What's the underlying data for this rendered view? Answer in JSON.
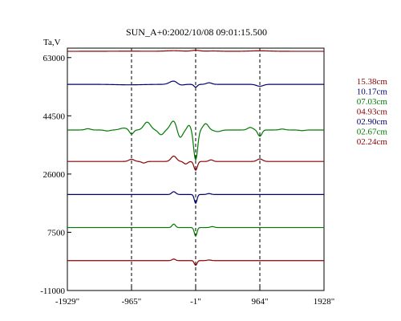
{
  "chart_data": {
    "type": "line",
    "title": "SUN_A+0:2002/10/08 09:01:15.500",
    "ylabel": "Ta,V",
    "xlim": [
      -1929,
      1928
    ],
    "ylim": [
      -11000,
      66000
    ],
    "x_ticks": [
      -1929,
      -965,
      -1,
      964,
      1928
    ],
    "x_tick_labels": [
      "-1929\"",
      "-965\"",
      "-1\"",
      "964\"",
      "1928\""
    ],
    "y_ticks": [
      -11000,
      7500,
      26000,
      44500,
      63000
    ],
    "y_tick_labels": [
      "-11000",
      "7500",
      "26000",
      "44500",
      "63000"
    ],
    "grid": {
      "x_dashed_at": [
        -965,
        -1,
        964
      ],
      "y": false
    },
    "legend_position": "right",
    "series": [
      {
        "name": "15.38cm",
        "color": "#8b0000",
        "baseline": 65000,
        "features": [
          [
            -1000,
            40,
            300
          ],
          [
            -330,
            180,
            120
          ],
          [
            -1,
            300,
            60
          ],
          [
            260,
            100,
            100
          ],
          [
            964,
            150,
            150
          ]
        ]
      },
      {
        "name": "10.17cm",
        "color": "#00006e",
        "baseline": 54500,
        "features": [
          [
            -1000,
            -150,
            200
          ],
          [
            -330,
            1100,
            60
          ],
          [
            -240,
            -400,
            50
          ],
          [
            -1,
            -900,
            25
          ],
          [
            200,
            500,
            40
          ],
          [
            964,
            -600,
            50
          ]
        ]
      },
      {
        "name": "07.03cm",
        "color": "#007a00",
        "baseline": 40000,
        "features": [
          [
            -1620,
            400,
            40
          ],
          [
            -1330,
            -300,
            40
          ],
          [
            -1080,
            600,
            60
          ],
          [
            -965,
            -1400,
            30
          ],
          [
            -730,
            2500,
            50
          ],
          [
            -520,
            -1500,
            40
          ],
          [
            -330,
            3000,
            50
          ],
          [
            -240,
            -2800,
            40
          ],
          [
            -100,
            1500,
            30
          ],
          [
            -1,
            -9500,
            30
          ],
          [
            150,
            2000,
            40
          ],
          [
            330,
            -500,
            50
          ],
          [
            820,
            800,
            40
          ],
          [
            964,
            -2000,
            30
          ],
          [
            1300,
            300,
            40
          ],
          [
            1600,
            -200,
            40
          ]
        ]
      },
      {
        "name": "04.93cm",
        "color": "#8b0000",
        "baseline": 30000,
        "features": [
          [
            -965,
            700,
            40
          ],
          [
            -780,
            -500,
            30
          ],
          [
            -330,
            1700,
            40
          ],
          [
            -150,
            -800,
            30
          ],
          [
            -1,
            -2800,
            25
          ],
          [
            230,
            500,
            30
          ],
          [
            964,
            800,
            40
          ]
        ]
      },
      {
        "name": "02.90cm",
        "color": "#00006e",
        "baseline": 19500,
        "features": [
          [
            -330,
            900,
            30
          ],
          [
            -1,
            -2800,
            20
          ],
          [
            200,
            300,
            30
          ]
        ]
      },
      {
        "name": "02.67cm",
        "color": "#007a00",
        "baseline": 9000,
        "features": [
          [
            -330,
            1100,
            25
          ],
          [
            -1,
            -2700,
            20
          ],
          [
            250,
            300,
            30
          ]
        ]
      },
      {
        "name": "02.24cm",
        "color": "#8b0000",
        "baseline": -1500,
        "features": [
          [
            -330,
            500,
            25
          ],
          [
            -1,
            -1500,
            20
          ],
          [
            200,
            200,
            30
          ]
        ]
      }
    ]
  }
}
